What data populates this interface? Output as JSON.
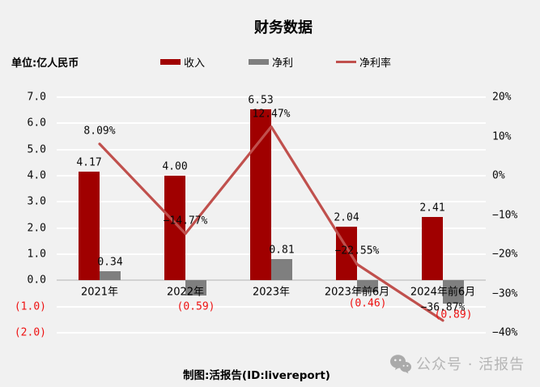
{
  "header": {
    "title": "财务数据",
    "unit_label": "单位:亿人民币"
  },
  "legend": {
    "items": [
      {
        "label": "收入",
        "marker": "bar",
        "color": "#a00000"
      },
      {
        "label": "净利",
        "marker": "bar",
        "color": "#7f7f7f"
      },
      {
        "label": "净利率",
        "marker": "line",
        "color": "#c0504d"
      }
    ]
  },
  "chart_data": {
    "type": "bar",
    "subtype": "bar-line-combo",
    "title": "财务数据",
    "unit": "亿人民币",
    "categories": [
      "2021年",
      "2022年",
      "2023年",
      "2023年前6月",
      "2024年前6月"
    ],
    "series": [
      {
        "name": "收入",
        "type": "bar",
        "axis": "left",
        "color": "#a00000",
        "values": [
          4.17,
          4.0,
          6.53,
          2.04,
          2.41
        ],
        "labels": [
          "4.17",
          "4.00",
          "6.53",
          "2.04",
          "2.41"
        ]
      },
      {
        "name": "净利",
        "type": "bar",
        "axis": "left",
        "color": "#7f7f7f",
        "values": [
          0.34,
          -0.59,
          0.81,
          -0.46,
          -0.89
        ],
        "labels": [
          "0.34",
          "(0.59)",
          "0.81",
          "(0.46)",
          "(0.89)"
        ]
      },
      {
        "name": "净利率",
        "type": "line",
        "axis": "right",
        "color": "#c0504d",
        "values": [
          8.09,
          -14.77,
          12.47,
          -22.55,
          -36.87
        ],
        "labels": [
          "8.09%",
          "−14.77%",
          "12.47%",
          "−22.55%",
          "−36.87%"
        ]
      }
    ],
    "left_axis": {
      "min": -2,
      "max": 7,
      "tick_step": 1,
      "tick_labels": [
        "7.0",
        "6.0",
        "5.0",
        "4.0",
        "3.0",
        "2.0",
        "1.0",
        "0.0",
        "(1.0)",
        "(2.0)"
      ]
    },
    "right_axis": {
      "min": -40,
      "max": 20,
      "tick_step": 10,
      "tick_labels": [
        "20%",
        "10%",
        "0%",
        "−10%",
        "−20%",
        "−30%",
        "−40%"
      ]
    },
    "grid": true,
    "legend_position": "top",
    "negative_label_color": "#ee1111"
  },
  "footer": {
    "credit": "制图:活报告(ID:livereport)"
  },
  "watermark": {
    "icon": "wechat-icon",
    "text": "公众号 · 活报告"
  }
}
